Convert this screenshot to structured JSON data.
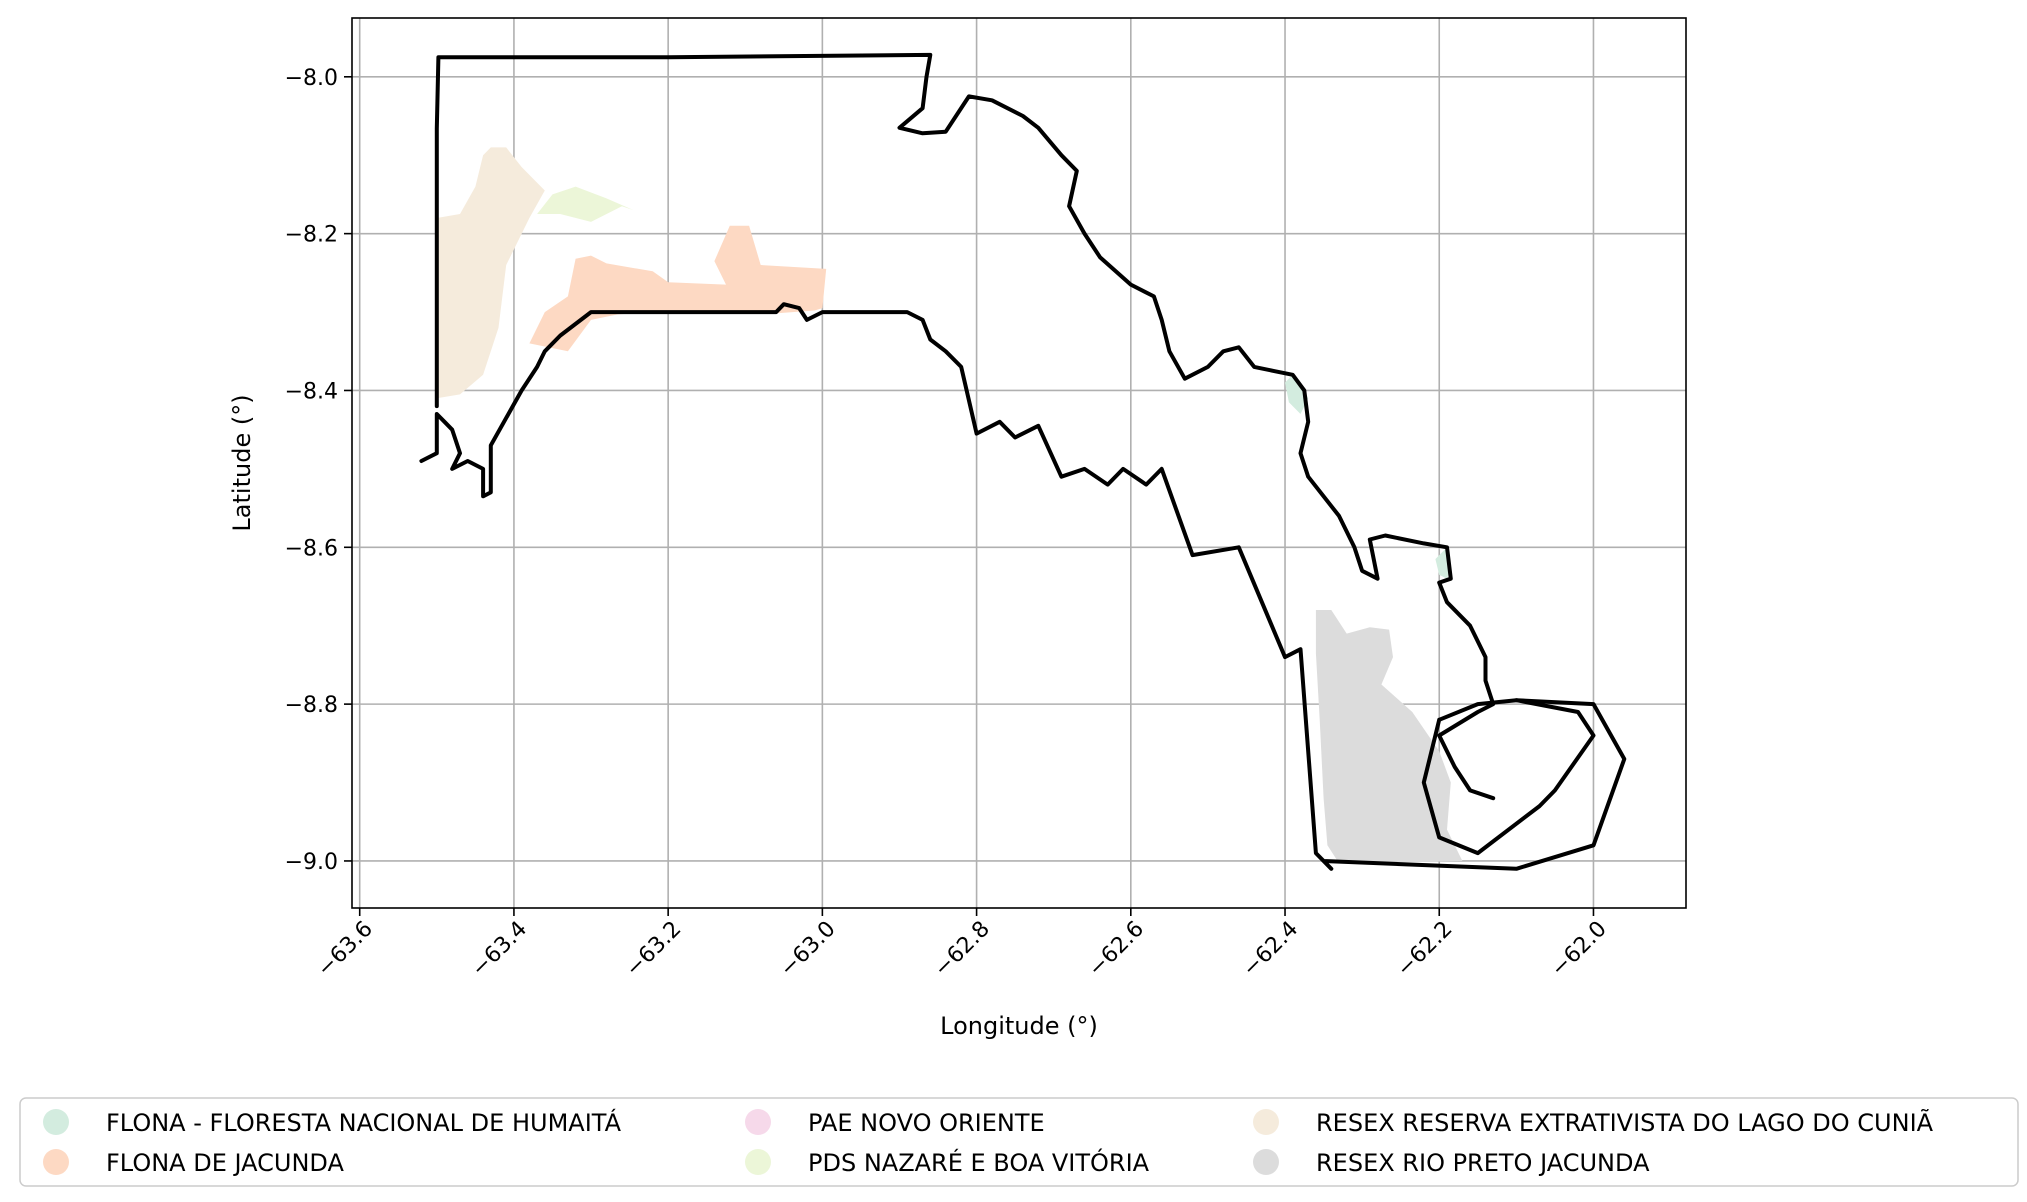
{
  "chart_data": {
    "type": "map",
    "title": "",
    "xlabel": "Longitude (°)",
    "ylabel": "Latitude (°)",
    "xlim": [
      -63.61,
      -61.88
    ],
    "ylim": [
      -9.06,
      -7.925
    ],
    "grid": true,
    "x_ticks": [
      {
        "value": -63.6,
        "label": "−63.6"
      },
      {
        "value": -63.4,
        "label": "−63.4"
      },
      {
        "value": -63.2,
        "label": "−63.2"
      },
      {
        "value": -63.0,
        "label": "−63.0"
      },
      {
        "value": -62.8,
        "label": "−62.8"
      },
      {
        "value": -62.6,
        "label": "−62.6"
      },
      {
        "value": -62.4,
        "label": "−62.4"
      },
      {
        "value": -62.2,
        "label": "−62.2"
      },
      {
        "value": -62.0,
        "label": "−62.0"
      }
    ],
    "y_ticks": [
      {
        "value": -8.0,
        "label": "−8.0"
      },
      {
        "value": -8.2,
        "label": "−8.2"
      },
      {
        "value": -8.4,
        "label": "−8.4"
      },
      {
        "value": -8.6,
        "label": "−8.6"
      },
      {
        "value": -8.8,
        "label": "−8.8"
      },
      {
        "value": -9.0,
        "label": "−9.0"
      }
    ],
    "legend_position": "bottom",
    "legend": [
      {
        "name": "FLONA - FLORESTA NACIONAL DE HUMAITÁ",
        "color": "#d3ecdf"
      },
      {
        "name": "FLONA DE JACUNDA",
        "color": "#fdd9c3"
      },
      {
        "name": "PAE NOVO ORIENTE",
        "color": "#f6d9ea"
      },
      {
        "name": "PDS NAZARÉ E BOA VITÓRIA",
        "color": "#ecf6d8"
      },
      {
        "name": "RESEX RESERVA EXTRATIVISTA DO LAGO DO CUNIÃ",
        "color": "#f5ebdc"
      },
      {
        "name": "RESEX RIO PRETO JACUNDA",
        "color": "#dcdcdc"
      }
    ],
    "areas": [
      {
        "name": "RESEX RESERVA EXTRATIVISTA DO LAGO DO CUNIÃ",
        "color": "#f5ebdc",
        "coords": [
          [
            -63.5,
            -8.41
          ],
          [
            -63.5,
            -8.18
          ],
          [
            -63.47,
            -8.175
          ],
          [
            -63.45,
            -8.14
          ],
          [
            -63.44,
            -8.1
          ],
          [
            -63.43,
            -8.09
          ],
          [
            -63.41,
            -8.09
          ],
          [
            -63.39,
            -8.115
          ],
          [
            -63.36,
            -8.145
          ],
          [
            -63.38,
            -8.18
          ],
          [
            -63.41,
            -8.24
          ],
          [
            -63.42,
            -8.32
          ],
          [
            -63.44,
            -8.38
          ],
          [
            -63.47,
            -8.405
          ]
        ]
      },
      {
        "name": "PDS NAZARÉ E BOA VITÓRIA",
        "color": "#ecf6d8",
        "coords": [
          [
            -63.37,
            -8.175
          ],
          [
            -63.35,
            -8.15
          ],
          [
            -63.32,
            -8.14
          ],
          [
            -63.28,
            -8.155
          ],
          [
            -63.245,
            -8.17
          ],
          [
            -63.26,
            -8.165
          ],
          [
            -63.3,
            -8.185
          ],
          [
            -63.34,
            -8.175
          ]
        ]
      },
      {
        "name": "FLONA DE JACUNDA",
        "color": "#fdd9c3",
        "coords": [
          [
            -63.38,
            -8.34
          ],
          [
            -63.33,
            -8.35
          ],
          [
            -63.3,
            -8.31
          ],
          [
            -63.265,
            -8.303
          ],
          [
            -63.22,
            -8.3
          ],
          [
            -63.16,
            -8.298
          ],
          [
            -63.11,
            -8.3
          ],
          [
            -63.065,
            -8.302
          ],
          [
            -63.01,
            -8.298
          ],
          [
            -63.0,
            -8.295
          ],
          [
            -62.995,
            -8.245
          ],
          [
            -63.08,
            -8.24
          ],
          [
            -63.095,
            -8.19
          ],
          [
            -63.12,
            -8.19
          ],
          [
            -63.14,
            -8.235
          ],
          [
            -63.125,
            -8.265
          ],
          [
            -63.2,
            -8.262
          ],
          [
            -63.22,
            -8.248
          ],
          [
            -63.28,
            -8.238
          ],
          [
            -63.3,
            -8.228
          ],
          [
            -63.32,
            -8.232
          ],
          [
            -63.33,
            -8.28
          ],
          [
            -63.36,
            -8.3
          ]
        ]
      },
      {
        "name": "FLONA - FLORESTA NACIONAL DE HUMAITÁ",
        "color": "#d3ecdf",
        "coords": [
          [
            -62.39,
            -8.38
          ],
          [
            -62.38,
            -8.39
          ],
          [
            -62.37,
            -8.41
          ],
          [
            -62.38,
            -8.43
          ],
          [
            -62.395,
            -8.415
          ],
          [
            -62.4,
            -8.39
          ]
        ]
      },
      {
        "name": "FLONA - FLORESTA NACIONAL DE HUMAITÁ",
        "color": "#d3ecdf",
        "coords": [
          [
            -62.19,
            -8.6
          ],
          [
            -62.185,
            -8.625
          ],
          [
            -62.19,
            -8.64
          ],
          [
            -62.2,
            -8.635
          ],
          [
            -62.205,
            -8.615
          ]
        ]
      },
      {
        "name": "RESEX RIO PRETO JACUNDA",
        "color": "#dcdcdc",
        "coords": [
          [
            -62.36,
            -8.68
          ],
          [
            -62.34,
            -8.68
          ],
          [
            -62.32,
            -8.71
          ],
          [
            -62.29,
            -8.702
          ],
          [
            -62.265,
            -8.705
          ],
          [
            -62.26,
            -8.74
          ],
          [
            -62.275,
            -8.775
          ],
          [
            -62.235,
            -8.81
          ],
          [
            -62.2,
            -8.86
          ],
          [
            -62.185,
            -8.9
          ],
          [
            -62.19,
            -8.96
          ],
          [
            -62.17,
            -9.0
          ],
          [
            -62.33,
            -9.003
          ],
          [
            -62.345,
            -8.98
          ],
          [
            -62.35,
            -8.92
          ],
          [
            -62.355,
            -8.82
          ],
          [
            -62.36,
            -8.735
          ]
        ]
      }
    ],
    "boundaries": [
      {
        "name": "municipality-outline",
        "coords": [
          [
            -63.5,
            -8.42
          ],
          [
            -63.5,
            -8.066
          ],
          [
            -63.498,
            -7.975
          ],
          [
            -63.2,
            -7.975
          ],
          [
            -62.86,
            -7.972
          ],
          [
            -62.865,
            -8.0
          ],
          [
            -62.87,
            -8.04
          ],
          [
            -62.9,
            -8.065
          ],
          [
            -62.87,
            -8.072
          ],
          [
            -62.84,
            -8.07
          ],
          [
            -62.81,
            -8.025
          ],
          [
            -62.78,
            -8.03
          ],
          [
            -62.74,
            -8.05
          ],
          [
            -62.72,
            -8.065
          ],
          [
            -62.69,
            -8.1
          ],
          [
            -62.67,
            -8.12
          ],
          [
            -62.68,
            -8.165
          ],
          [
            -62.66,
            -8.2
          ],
          [
            -62.64,
            -8.23
          ],
          [
            -62.6,
            -8.265
          ],
          [
            -62.57,
            -8.28
          ],
          [
            -62.56,
            -8.31
          ],
          [
            -62.55,
            -8.35
          ],
          [
            -62.53,
            -8.385
          ],
          [
            -62.5,
            -8.37
          ],
          [
            -62.48,
            -8.35
          ],
          [
            -62.46,
            -8.345
          ],
          [
            -62.44,
            -8.37
          ],
          [
            -62.415,
            -8.375
          ],
          [
            -62.39,
            -8.38
          ],
          [
            -62.375,
            -8.4
          ],
          [
            -62.37,
            -8.44
          ],
          [
            -62.38,
            -8.48
          ],
          [
            -62.37,
            -8.51
          ],
          [
            -62.33,
            -8.56
          ],
          [
            -62.31,
            -8.6
          ],
          [
            -62.3,
            -8.63
          ],
          [
            -62.28,
            -8.64
          ],
          [
            -62.29,
            -8.59
          ],
          [
            -62.27,
            -8.585
          ],
          [
            -62.22,
            -8.595
          ],
          [
            -62.19,
            -8.6
          ],
          [
            -62.185,
            -8.64
          ],
          [
            -62.2,
            -8.645
          ],
          [
            -62.19,
            -8.67
          ],
          [
            -62.16,
            -8.7
          ],
          [
            -62.14,
            -8.74
          ],
          [
            -62.14,
            -8.77
          ],
          [
            -62.13,
            -8.8
          ],
          [
            -62.15,
            -8.81
          ],
          [
            -62.2,
            -8.84
          ],
          [
            -62.18,
            -8.88
          ],
          [
            -62.16,
            -8.91
          ],
          [
            -62.13,
            -8.92
          ]
        ]
      },
      {
        "name": "southern-boundary",
        "coords": [
          [
            -63.52,
            -8.49
          ],
          [
            -63.5,
            -8.48
          ],
          [
            -63.5,
            -8.43
          ],
          [
            -63.49,
            -8.44
          ],
          [
            -63.48,
            -8.45
          ],
          [
            -63.47,
            -8.48
          ],
          [
            -63.48,
            -8.5
          ],
          [
            -63.46,
            -8.49
          ],
          [
            -63.44,
            -8.5
          ],
          [
            -63.44,
            -8.535
          ],
          [
            -63.43,
            -8.53
          ],
          [
            -63.43,
            -8.47
          ],
          [
            -63.39,
            -8.4
          ],
          [
            -63.37,
            -8.37
          ],
          [
            -63.36,
            -8.35
          ],
          [
            -63.34,
            -8.33
          ],
          [
            -63.3,
            -8.3
          ],
          [
            -63.06,
            -8.3
          ],
          [
            -63.05,
            -8.29
          ],
          [
            -63.03,
            -8.295
          ],
          [
            -63.02,
            -8.31
          ],
          [
            -63.0,
            -8.3
          ],
          [
            -62.89,
            -8.3
          ],
          [
            -62.87,
            -8.31
          ],
          [
            -62.86,
            -8.335
          ],
          [
            -62.84,
            -8.35
          ],
          [
            -62.82,
            -8.37
          ],
          [
            -62.8,
            -8.455
          ],
          [
            -62.77,
            -8.44
          ],
          [
            -62.75,
            -8.46
          ],
          [
            -62.72,
            -8.445
          ],
          [
            -62.69,
            -8.51
          ],
          [
            -62.66,
            -8.5
          ],
          [
            -62.63,
            -8.52
          ],
          [
            -62.61,
            -8.5
          ],
          [
            -62.58,
            -8.52
          ],
          [
            -62.56,
            -8.5
          ],
          [
            -62.52,
            -8.61
          ],
          [
            -62.46,
            -8.6
          ],
          [
            -62.4,
            -8.74
          ],
          [
            -62.38,
            -8.73
          ],
          [
            -62.36,
            -8.99
          ],
          [
            -62.34,
            -9.01
          ],
          [
            -62.35,
            -9.0
          ],
          [
            -62.1,
            -9.01
          ],
          [
            -62.0,
            -8.98
          ],
          [
            -61.96,
            -8.87
          ],
          [
            -62.0,
            -8.8
          ],
          [
            -62.1,
            -8.795
          ]
        ]
      },
      {
        "name": "inner-loop",
        "coords": [
          [
            -62.2,
            -8.82
          ],
          [
            -62.22,
            -8.9
          ],
          [
            -62.2,
            -8.97
          ],
          [
            -62.15,
            -8.99
          ],
          [
            -62.07,
            -8.93
          ],
          [
            -62.05,
            -8.91
          ],
          [
            -62.0,
            -8.84
          ],
          [
            -62.02,
            -8.81
          ],
          [
            -62.1,
            -8.795
          ],
          [
            -62.15,
            -8.8
          ],
          [
            -62.2,
            -8.82
          ]
        ]
      }
    ]
  }
}
